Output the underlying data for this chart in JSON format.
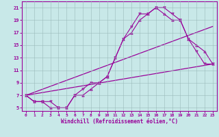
{
  "xlabel": "Windchill (Refroidissement éolien,°C)",
  "background_color": "#c8e8e8",
  "line_color": "#990099",
  "xlim": [
    -0.5,
    23.5
  ],
  "ylim": [
    4.5,
    22
  ],
  "yticks": [
    5,
    7,
    9,
    11,
    13,
    15,
    17,
    19,
    21
  ],
  "xticks": [
    0,
    1,
    2,
    3,
    4,
    5,
    6,
    7,
    8,
    9,
    10,
    11,
    12,
    13,
    14,
    15,
    16,
    17,
    18,
    19,
    20,
    21,
    22,
    23
  ],
  "series1_x": [
    0,
    1,
    2,
    3,
    4,
    5,
    6,
    7,
    8,
    9,
    10,
    11,
    12,
    13,
    14,
    15,
    16,
    17,
    18,
    19,
    20,
    21,
    22,
    23
  ],
  "series1_y": [
    7,
    6,
    6,
    6,
    5,
    5,
    7,
    8,
    9,
    9,
    10,
    13,
    16,
    18,
    20,
    20,
    21,
    21,
    20,
    19,
    16,
    14,
    12,
    12
  ],
  "series2_x": [
    0,
    1,
    2,
    3,
    4,
    5,
    6,
    7,
    8,
    9,
    10,
    11,
    12,
    13,
    14,
    15,
    16,
    17,
    18,
    19,
    20,
    21,
    22,
    23
  ],
  "series2_y": [
    7,
    6,
    6,
    5,
    5,
    5,
    7,
    7,
    8,
    9,
    10,
    13,
    16,
    17,
    19,
    20,
    21,
    20,
    19,
    19,
    16,
    15,
    14,
    12
  ],
  "series3_x": [
    0,
    23
  ],
  "series3_y": [
    7,
    12
  ],
  "series4_x": [
    0,
    23
  ],
  "series4_y": [
    7,
    18
  ]
}
